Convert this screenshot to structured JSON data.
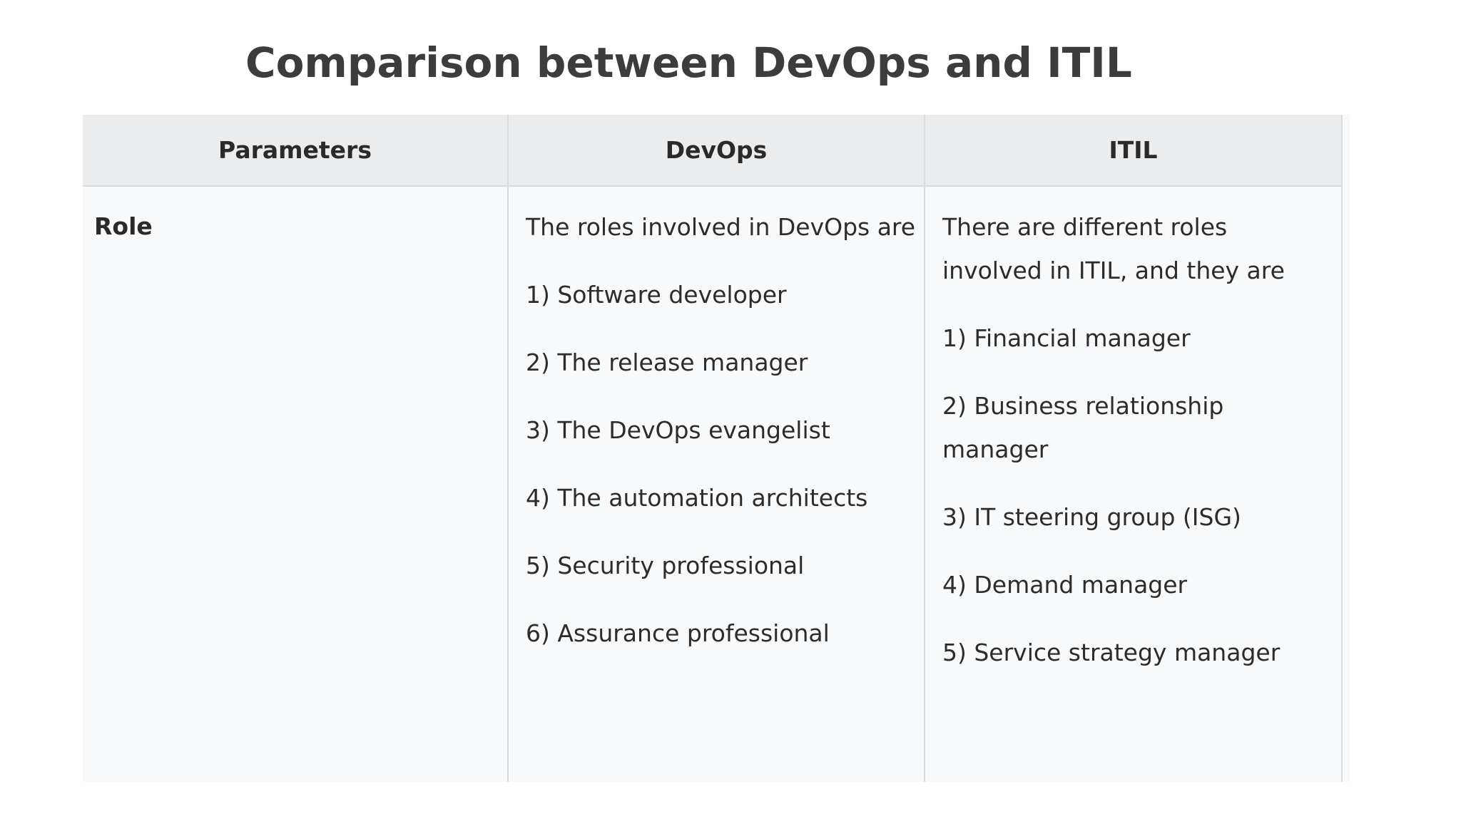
{
  "title": "Comparison between DevOps and ITIL",
  "table": {
    "headers": [
      "Parameters",
      "DevOps",
      "ITIL"
    ],
    "rows": [
      {
        "parameter": "Role",
        "devops": [
          "The roles involved in DevOps are",
          "1) Software developer",
          "2) The release manager",
          "3) The DevOps evangelist",
          "4) The automation architects",
          "5) Security professional",
          "6) Assurance professional"
        ],
        "itil": [
          "There are different roles involved in ITIL, and they are",
          "1) Financial manager",
          "2) Business relationship manager",
          "3) IT steering group (ISG)",
          "4) Demand manager",
          "5) Service strategy manager"
        ]
      }
    ]
  }
}
